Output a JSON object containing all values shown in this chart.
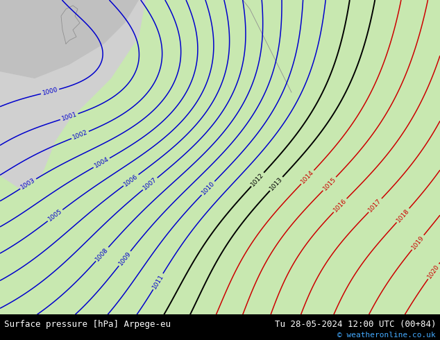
{
  "title_left": "Surface pressure [hPa] Arpege-eu",
  "title_right": "Tu 28-05-2024 12:00 UTC (00+84)",
  "copyright": "© weatheronline.co.uk",
  "footer_bg": "#000000",
  "footer_text_color": "#ffffff",
  "footer_right_color": "#44aaff",
  "contour_blue_color": "#0000cc",
  "contour_black_color": "#000000",
  "contour_red_color": "#cc0000",
  "land_green_light": "#c8e8b0",
  "land_green_mid": "#b8d8a0",
  "sea_gray": "#d0d0d0",
  "figsize": [
    6.34,
    4.9
  ],
  "dpi": 100
}
